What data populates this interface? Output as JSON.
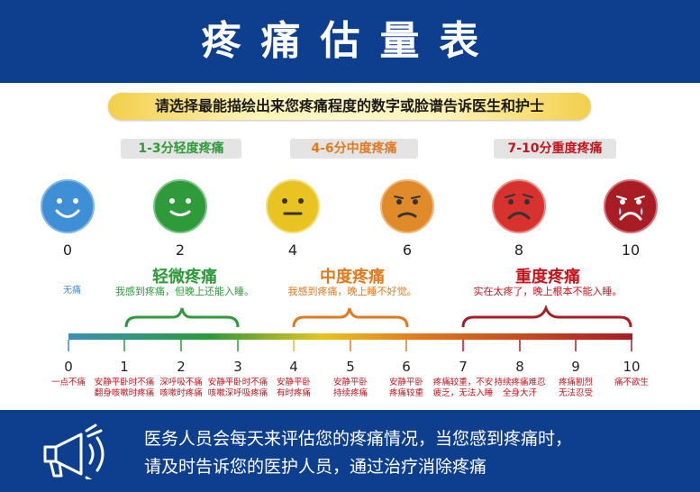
{
  "title": "疼痛估量表",
  "instruction": "请选择最能描绘出来您疼痛程度的数字或脸谱告诉医生和护士",
  "categories": {
    "mild": "1-3分轻度疼痛",
    "moderate": "4-6分中度疼痛",
    "severe": "7-10分重度疼痛"
  },
  "faces": [
    {
      "score": "0",
      "color": "#3f8fd6"
    },
    {
      "score": "2",
      "color": "#2e9a3a"
    },
    {
      "score": "4",
      "color": "#e8c321"
    },
    {
      "score": "6",
      "color": "#e08a2a"
    },
    {
      "score": "8",
      "color": "#d8322e"
    },
    {
      "score": "10",
      "color": "#a81c24"
    }
  ],
  "none_label": "无痛",
  "severity": {
    "mild": {
      "title": "轻微疼痛",
      "desc": "我感到疼痛，但晚上还能入睡。",
      "color": "#2e9a3a"
    },
    "moderate": {
      "title": "中度疼痛",
      "desc": "我感到疼痛，晚上睡不好觉。",
      "color": "#e07a1f"
    },
    "severe": {
      "title": "重度疼痛",
      "desc": "实在太疼了，晚上根本不能入睡。",
      "color": "#c4141c"
    }
  },
  "scale": {
    "ticks": [
      "0",
      "1",
      "2",
      "3",
      "4",
      "5",
      "6",
      "7",
      "8",
      "9",
      "10"
    ],
    "descriptions": [
      [
        "一点不痛"
      ],
      [
        "安静平卧时不痛",
        "翻身咳嗽时疼痛"
      ],
      [
        "深呼吸不痛",
        "咳嗽时疼痛"
      ],
      [
        "安静平卧时不痛",
        "咳嗽深呼吸疼痛"
      ],
      [
        "安静平卧",
        "有时疼痛"
      ],
      [
        "安静平卧",
        "持续疼痛"
      ],
      [
        "安静平卧",
        "疼痛较重"
      ],
      [
        "疼痛较重，不安",
        "疲乏，无法入睡"
      ],
      [
        "持续疼痛难忍",
        "全身大汗"
      ],
      [
        "疼痛剧烈",
        "无法忍受"
      ],
      [
        "痛不欲生"
      ]
    ]
  },
  "footer": {
    "line1": "医务人员会每天来评估您的疼痛情况，当您感到疼痛时，",
    "line2": "请及时告诉您的医护人员，通过治疗消除疼痛",
    "icon": "megaphone-icon"
  },
  "colors": {
    "header_bg": "#0e3f8e",
    "mild": "#2e9a3a",
    "moderate": "#e07a1f",
    "severe": "#c4141c"
  }
}
